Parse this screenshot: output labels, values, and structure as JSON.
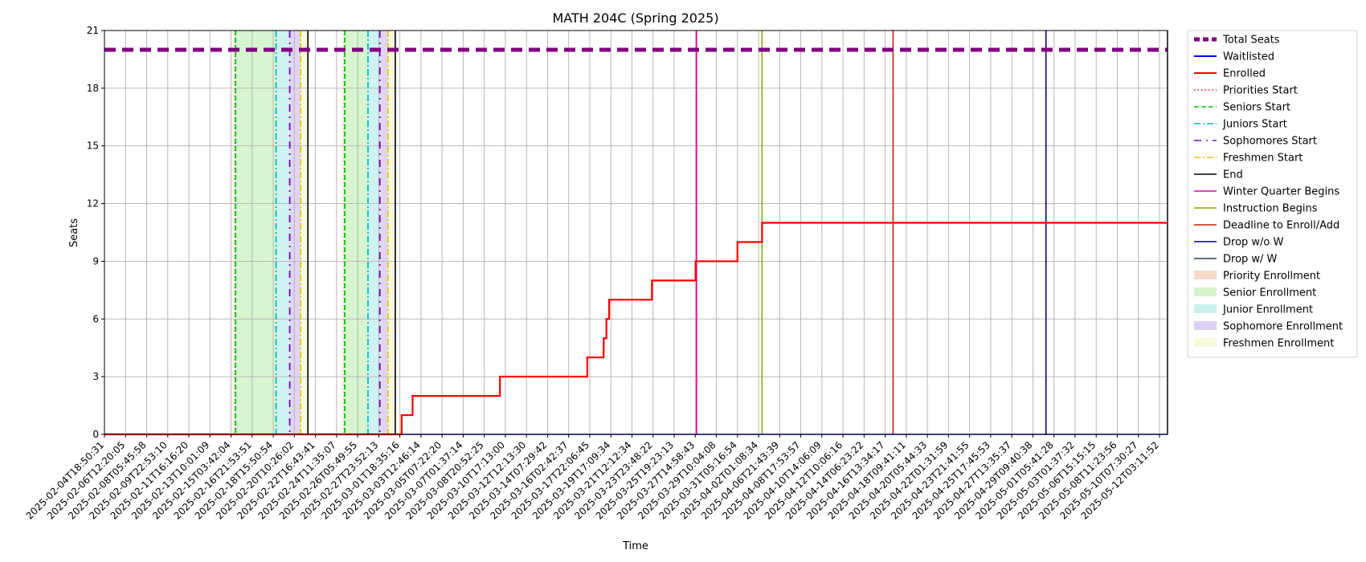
{
  "chart_data": {
    "type": "line",
    "title": "MATH 204C (Spring 2025)",
    "xlabel": "Time",
    "ylabel": "Seats",
    "ylim": [
      0,
      21
    ],
    "yticks": [
      0,
      3,
      6,
      9,
      12,
      15,
      18,
      21
    ],
    "xlim": [
      "2025-02-04T18:50:31",
      "2025-05-13T03:11:52"
    ],
    "xticks": [
      "2025-02-04T18:50:31",
      "2025-02-06T12:20:05",
      "2025-02-08T05:45:58",
      "2025-02-09T22:53:10",
      "2025-02-11T16:16:20",
      "2025-02-13T10:01:09",
      "2025-02-15T03:42:04",
      "2025-02-16T21:53:51",
      "2025-02-18T15:50:54",
      "2025-02-20T10:26:02",
      "2025-02-22T16:43:41",
      "2025-02-24T11:35:07",
      "2025-02-26T05:49:55",
      "2025-02-27T23:52:13",
      "2025-03-01T18:35:16",
      "2025-03-03T12:46:14",
      "2025-03-05T07:22:20",
      "2025-03-07T01:37:14",
      "2025-03-08T20:52:25",
      "2025-03-10T17:13:00",
      "2025-03-12T12:13:30",
      "2025-03-14T07:29:42",
      "2025-03-16T02:42:37",
      "2025-03-17T22:06:45",
      "2025-03-19T17:09:34",
      "2025-03-21T12:12:34",
      "2025-03-23T23:48:22",
      "2025-03-25T19:23:13",
      "2025-03-27T14:58:43",
      "2025-03-29T10:04:08",
      "2025-03-31T05:16:54",
      "2025-04-02T01:08:34",
      "2025-04-06T21:43:39",
      "2025-04-08T17:53:57",
      "2025-04-10T14:06:09",
      "2025-04-12T10:06:16",
      "2025-04-14T06:23:22",
      "2025-04-16T13:34:17",
      "2025-04-18T09:41:11",
      "2025-04-20T05:44:33",
      "2025-04-22T01:31:59",
      "2025-04-23T21:41:55",
      "2025-04-25T17:45:53",
      "2025-04-27T13:35:37",
      "2025-04-29T09:40:38",
      "2025-05-01T05:41:28",
      "2025-05-03T01:37:32",
      "2025-05-06T15:15:15",
      "2025-05-08T11:23:56",
      "2025-05-10T07:30:27",
      "2025-05-12T03:11:52"
    ],
    "grid": true,
    "legend_position": "outside-right",
    "series": [
      {
        "name": "Total Seats",
        "color": "#800080",
        "style": "dashed-thick",
        "x": [
          "2025-02-04T18:50:31",
          "2025-05-13T03:11:52"
        ],
        "y": [
          20,
          20
        ]
      },
      {
        "name": "Waitlisted",
        "color": "#0000ff",
        "style": "solid",
        "x": [
          "2025-02-04T18:50:31",
          "2025-05-13T03:11:52"
        ],
        "y": [
          0,
          0
        ]
      },
      {
        "name": "Enrolled",
        "color": "#ff0000",
        "style": "step",
        "x": [
          "2025-02-04T18:50:31",
          "2025-03-04T00:00:00",
          "2025-03-05T00:00:00",
          "2025-03-13T00:00:00",
          "2025-03-21T00:00:00",
          "2025-03-22T12:00:00",
          "2025-03-22T18:00:00",
          "2025-03-23T00:00:00",
          "2025-03-26T22:00:00",
          "2025-03-30T22:00:00",
          "2025-04-03T18:00:00",
          "2025-04-06T00:00:00",
          "2025-05-13T03:11:52"
        ],
        "y": [
          0,
          1,
          2,
          3,
          4,
          5,
          6,
          7,
          8,
          9,
          10,
          11,
          11
        ]
      }
    ],
    "event_lines": [
      {
        "name": "Priorities Start",
        "color": "#ff0000",
        "style": "dotted",
        "x": [
          "2025-02-16T18:00:00",
          "2025-02-26T18:00:00"
        ]
      },
      {
        "name": "Seniors Start",
        "color": "#00cc00",
        "style": "dashed",
        "x": [
          "2025-02-16T19:00:00",
          "2025-02-26T19:00:00"
        ]
      },
      {
        "name": "Juniors Start",
        "color": "#00bfbf",
        "style": "dashdot",
        "x": [
          "2025-02-20T12:00:00",
          "2025-02-28T22:00:00"
        ]
      },
      {
        "name": "Sophomores Start",
        "color": "#6a0dad",
        "style": "loose-dashdot",
        "x": [
          "2025-02-21T18:00:00",
          "2025-03-02T00:00:00"
        ]
      },
      {
        "name": "Freshmen Start",
        "color": "#e6c700",
        "style": "dashdot",
        "x": [
          "2025-02-22T18:00:00",
          "2025-03-02T18:00:00"
        ]
      },
      {
        "name": "End",
        "color": "#000000",
        "style": "solid",
        "x": [
          "2025-02-23T10:00:00",
          "2025-03-03T10:00:00"
        ]
      },
      {
        "name": "Winter Quarter Begins",
        "color": "#e600a0",
        "style": "solid",
        "x": [
          "2025-03-31T00:00:00"
        ]
      },
      {
        "name": "Instruction Begins",
        "color": "#88aa00",
        "style": "solid",
        "x": [
          "2025-04-06T00:00:00"
        ]
      },
      {
        "name": "Deadline to Enroll/Add",
        "color": "#cc2200",
        "style": "solid",
        "x": [
          "2025-04-18T00:00:00"
        ]
      },
      {
        "name": "Drop w/o W",
        "color": "#000080",
        "style": "solid",
        "x": [
          "2025-05-02T00:00:00"
        ]
      },
      {
        "name": "Drop w/ W",
        "color": "#2f3f4f",
        "style": "solid",
        "x": [
          "2025-05-30T00:00:00"
        ]
      }
    ],
    "spans": [
      {
        "name": "Priority Enrollment",
        "color": "#f4c2a8",
        "ranges": [
          [
            "2025-02-16T18:00:00",
            "2025-02-16T19:00:00"
          ],
          [
            "2025-02-26T18:00:00",
            "2025-02-26T19:00:00"
          ]
        ]
      },
      {
        "name": "Senior Enrollment",
        "color": "#b6ecaa",
        "ranges": [
          [
            "2025-02-16T19:00:00",
            "2025-02-20T12:00:00"
          ],
          [
            "2025-02-26T19:00:00",
            "2025-02-28T22:00:00"
          ]
        ]
      },
      {
        "name": "Junior Enrollment",
        "color": "#a8e8ea",
        "ranges": [
          [
            "2025-02-20T12:00:00",
            "2025-02-21T18:00:00"
          ],
          [
            "2025-02-28T22:00:00",
            "2025-03-02T00:00:00"
          ]
        ]
      },
      {
        "name": "Sophomore Enrollment",
        "color": "#c9b3f0",
        "ranges": [
          [
            "2025-02-21T18:00:00",
            "2025-02-22T18:00:00"
          ],
          [
            "2025-03-02T00:00:00",
            "2025-03-02T18:00:00"
          ]
        ]
      },
      {
        "name": "Freshmen Enrollment",
        "color": "#f4f4c4",
        "ranges": [
          [
            "2025-02-22T18:00:00",
            "2025-02-23T10:00:00"
          ],
          [
            "2025-03-02T18:00:00",
            "2025-03-03T10:00:00"
          ]
        ]
      }
    ]
  }
}
